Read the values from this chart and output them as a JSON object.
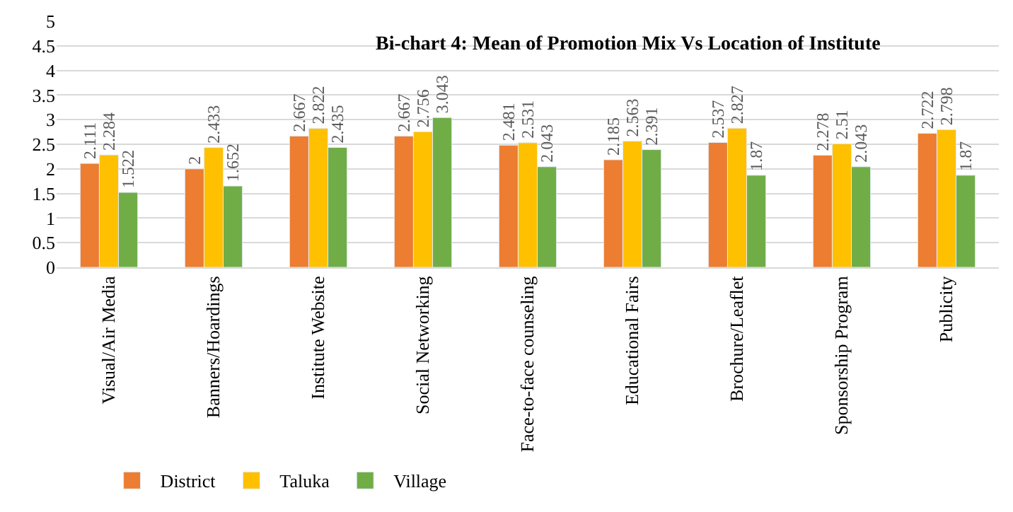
{
  "chart_data": {
    "type": "bar",
    "title": "Bi-chart 4: Mean of Promotion Mix Vs Location of Institute",
    "categories": [
      "Visual/Air Media",
      "Banners/Hoardings",
      "Institute Website",
      "Social Networking",
      "Face-to-face counseling",
      "Educational Fairs",
      "Brochure/Leaflet",
      "Sponsorship Program",
      "Publicity"
    ],
    "series": [
      {
        "name": "District",
        "color": "#ed7d31",
        "values": [
          2.111,
          2,
          2.667,
          2.667,
          2.481,
          2.185,
          2.537,
          2.278,
          2.722
        ]
      },
      {
        "name": "Taluka",
        "color": "#ffc000",
        "values": [
          2.284,
          2.433,
          2.822,
          2.756,
          2.531,
          2.563,
          2.827,
          2.51,
          2.798
        ]
      },
      {
        "name": "Village",
        "color": "#70ad47",
        "values": [
          1.522,
          1.652,
          2.435,
          3.043,
          2.043,
          2.391,
          1.87,
          2.043,
          1.87
        ]
      }
    ],
    "ylim": [
      0,
      5
    ],
    "yticks": [
      0,
      0.5,
      1,
      1.5,
      2,
      2.5,
      3,
      3.5,
      4,
      4.5,
      5
    ],
    "grid": "y",
    "legend": "bottom left",
    "data_labels": true
  }
}
